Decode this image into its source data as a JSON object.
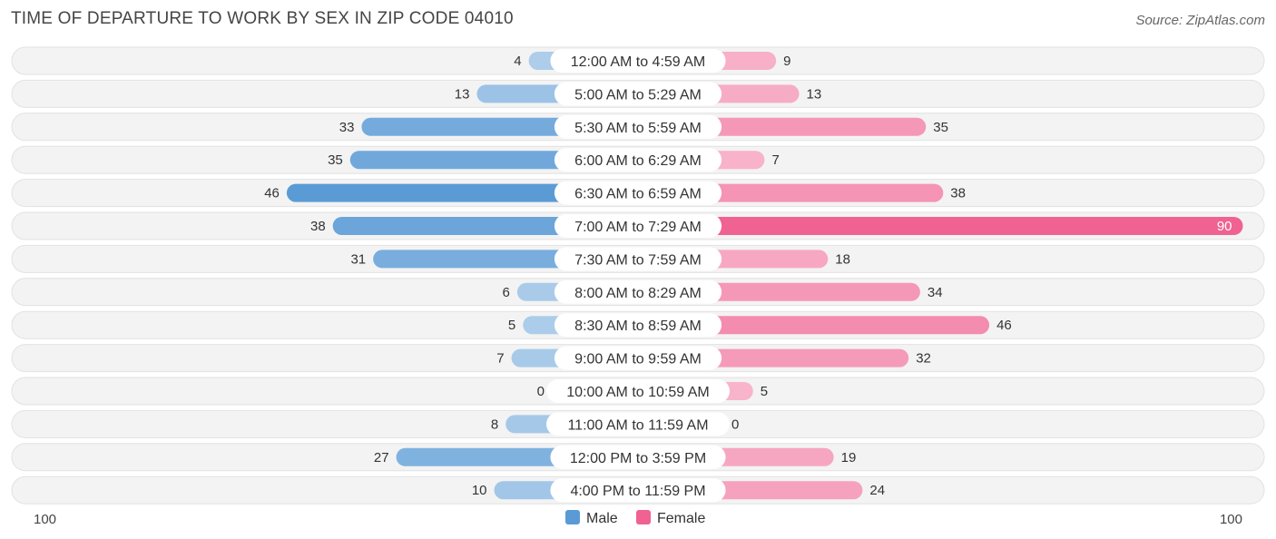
{
  "title": "TIME OF DEPARTURE TO WORK BY SEX IN ZIP CODE 04010",
  "source": "Source: ZipAtlas.com",
  "chart_data": {
    "type": "bar",
    "orientation": "horizontal-diverging",
    "categories": [
      "12:00 AM to 4:59 AM",
      "5:00 AM to 5:29 AM",
      "5:30 AM to 5:59 AM",
      "6:00 AM to 6:29 AM",
      "6:30 AM to 6:59 AM",
      "7:00 AM to 7:29 AM",
      "7:30 AM to 7:59 AM",
      "8:00 AM to 8:29 AM",
      "8:30 AM to 8:59 AM",
      "9:00 AM to 9:59 AM",
      "10:00 AM to 10:59 AM",
      "11:00 AM to 11:59 AM",
      "12:00 PM to 3:59 PM",
      "4:00 PM to 11:59 PM"
    ],
    "series": [
      {
        "name": "Male",
        "color": "#5b9bd5",
        "values": [
          4,
          13,
          33,
          35,
          46,
          38,
          31,
          6,
          5,
          7,
          0,
          8,
          27,
          10
        ]
      },
      {
        "name": "Female",
        "color": "#f06292",
        "values": [
          9,
          13,
          35,
          7,
          38,
          90,
          18,
          34,
          46,
          32,
          5,
          0,
          19,
          24
        ]
      }
    ],
    "axis_min_label": "100",
    "axis_max_label": "100",
    "xlim": [
      -100,
      100
    ],
    "legend_position": "bottom-center",
    "grid": false
  }
}
